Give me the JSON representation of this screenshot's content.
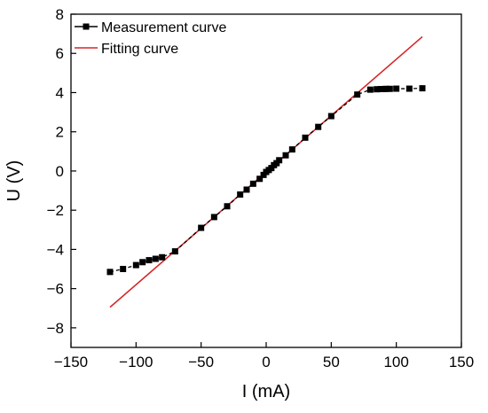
{
  "chart_data": {
    "type": "line",
    "title": "",
    "xlabel": "I (mA)",
    "ylabel": "U (V)",
    "xlim": [
      -150,
      150
    ],
    "ylim": [
      -9,
      8
    ],
    "xticks": [
      -150,
      -100,
      -50,
      0,
      50,
      100,
      150
    ],
    "yticks": [
      -8,
      -6,
      -4,
      -2,
      0,
      2,
      4,
      6,
      8
    ],
    "grid": false,
    "legend_position": "top-left",
    "series": [
      {
        "name": "Measurement curve",
        "style": "dashed line with square markers",
        "color": "#000000",
        "x": [
          -120,
          -110,
          -100,
          -95,
          -90,
          -85,
          -80,
          -70,
          -50,
          -40,
          -30,
          -20,
          -15,
          -10,
          -5,
          -2,
          0,
          2,
          4,
          6,
          8,
          10,
          15,
          20,
          30,
          40,
          50,
          70,
          80,
          85,
          88,
          90,
          92,
          95,
          100,
          110,
          120
        ],
        "y": [
          -5.15,
          -5.0,
          -4.8,
          -4.65,
          -4.55,
          -4.48,
          -4.4,
          -4.1,
          -2.9,
          -2.35,
          -1.8,
          -1.2,
          -0.95,
          -0.65,
          -0.4,
          -0.2,
          -0.05,
          0.05,
          0.15,
          0.3,
          0.4,
          0.55,
          0.8,
          1.1,
          1.7,
          2.25,
          2.8,
          3.9,
          4.15,
          4.17,
          4.18,
          4.18,
          4.19,
          4.19,
          4.2,
          4.2,
          4.22
        ]
      },
      {
        "name": "Fitting curve",
        "style": "solid line",
        "color": "#d62728",
        "x": [
          -120,
          120
        ],
        "y": [
          -6.95,
          6.85
        ]
      }
    ]
  }
}
